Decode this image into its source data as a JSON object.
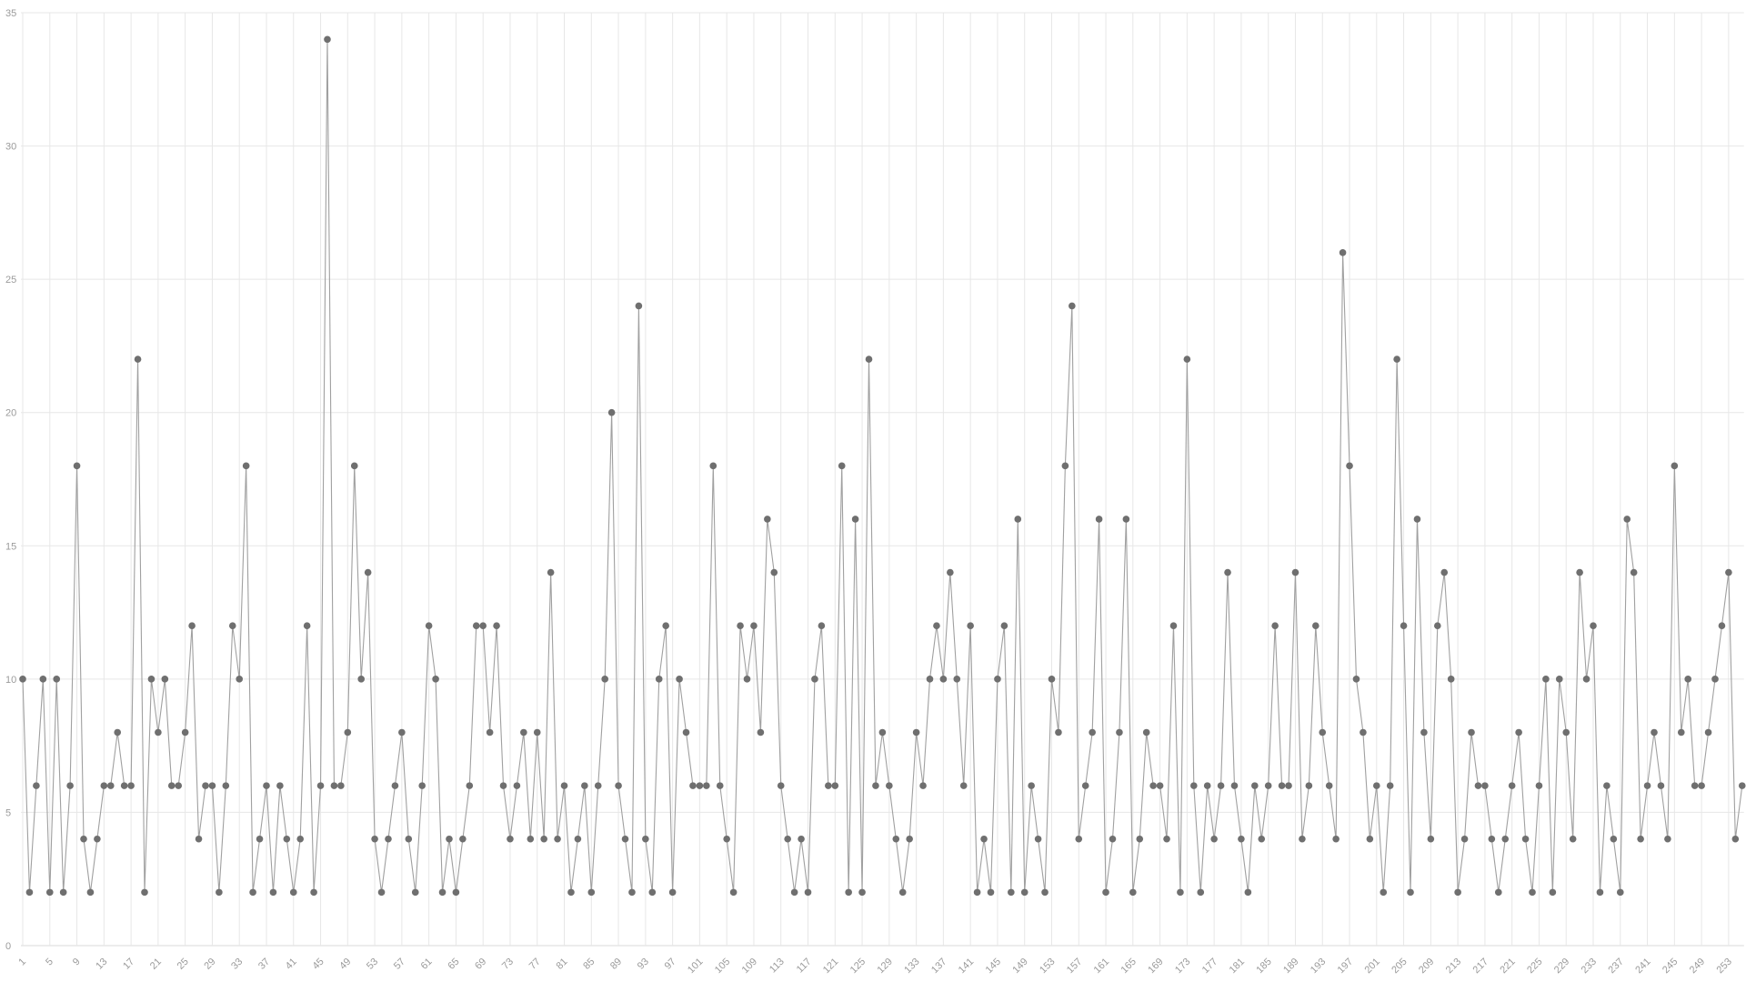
{
  "chart_data": {
    "type": "line",
    "title": "",
    "xlabel": "",
    "ylabel": "",
    "legend": "none",
    "grid": true,
    "marker": "circle",
    "ylim": [
      0,
      35
    ],
    "y_ticks": [
      0,
      5,
      10,
      15,
      20,
      25,
      30,
      35
    ],
    "x_tick_labels": [
      1,
      5,
      9,
      13,
      17,
      21,
      25,
      29,
      33,
      37,
      41,
      45,
      49,
      53,
      57,
      61,
      65,
      69,
      73,
      77,
      81,
      85,
      89,
      93,
      97,
      101,
      105,
      109,
      113,
      117,
      121,
      125,
      129,
      133,
      137,
      141,
      145,
      149,
      153,
      157,
      161,
      165,
      169,
      173,
      177,
      181,
      185,
      189,
      193,
      197,
      201,
      205,
      209,
      213,
      217,
      221,
      225,
      229,
      233,
      237,
      241,
      245,
      249,
      253
    ],
    "x_start": 1,
    "values": [
      10,
      2,
      6,
      10,
      2,
      10,
      2,
      6,
      18,
      4,
      2,
      4,
      6,
      6,
      8,
      6,
      6,
      22,
      2,
      10,
      8,
      10,
      6,
      6,
      8,
      12,
      4,
      6,
      6,
      2,
      6,
      12,
      10,
      18,
      2,
      4,
      6,
      2,
      6,
      4,
      2,
      4,
      12,
      2,
      6,
      34,
      6,
      6,
      8,
      18,
      10,
      14,
      4,
      2,
      4,
      6,
      8,
      4,
      2,
      6,
      12,
      10,
      2,
      4,
      2,
      4,
      6,
      12,
      12,
      8,
      12,
      6,
      4,
      6,
      8,
      4,
      8,
      4,
      14,
      4,
      6,
      2,
      4,
      6,
      2,
      6,
      10,
      20,
      6,
      4,
      2,
      24,
      4,
      2,
      10,
      12,
      2,
      10,
      8,
      6,
      6,
      6,
      18,
      6,
      4,
      2,
      12,
      10,
      12,
      8,
      16,
      14,
      6,
      4,
      2,
      4,
      2,
      10,
      12,
      6,
      6,
      18,
      2,
      16,
      2,
      22,
      6,
      8,
      6,
      4,
      2,
      4,
      8,
      6,
      10,
      12,
      10,
      14,
      10,
      6,
      12,
      2,
      4,
      2,
      10,
      12,
      2,
      16,
      2,
      6,
      4,
      2,
      10,
      8,
      18,
      24,
      4,
      6,
      8,
      16,
      2,
      4,
      8,
      16,
      2,
      4,
      8,
      6,
      6,
      4,
      12,
      2,
      22,
      6,
      2,
      6,
      4,
      6,
      14,
      6,
      4,
      2,
      6,
      4,
      6,
      12,
      6,
      6,
      14,
      4,
      6,
      12,
      8,
      6,
      4,
      26,
      18,
      10,
      8,
      4,
      6,
      2,
      6,
      22,
      12,
      2,
      16,
      8,
      4,
      12,
      14,
      10,
      2,
      4,
      8,
      6,
      6,
      4,
      2,
      4,
      6,
      8,
      4,
      2,
      6,
      10,
      2,
      10,
      8,
      4,
      14,
      10,
      12,
      2,
      6,
      4,
      2,
      16,
      14,
      4,
      6,
      8,
      6,
      4,
      18,
      8,
      10,
      6,
      6,
      8,
      10,
      12,
      14,
      4,
      6
    ]
  },
  "colors": {
    "line": "#a0a0a0",
    "marker": "#6f6f6f",
    "grid": "#e7e7e7",
    "axis": "#d8d8d8",
    "tick_text": "#9b9b9b",
    "background": "#ffffff"
  }
}
